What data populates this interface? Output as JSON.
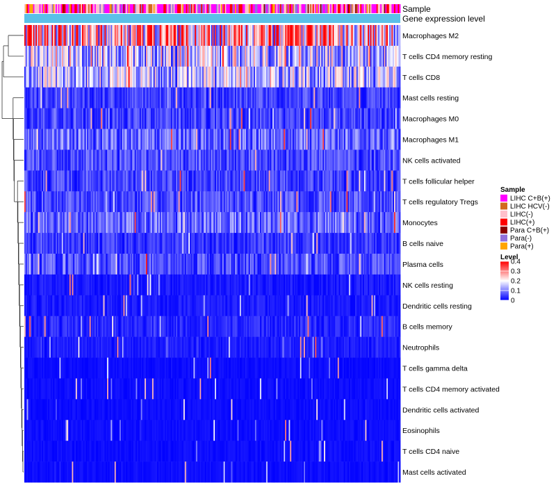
{
  "chart_data": {
    "type": "heatmap",
    "annotation_tracks": [
      "Sample",
      "Gene expression level"
    ],
    "rows": [
      "Macrophages M2",
      "T cells CD4 memory resting",
      "T cells CD8",
      "Mast cells resting",
      "Macrophages M0",
      "Macrophages M1",
      "NK cells activated",
      "T cells follicular helper",
      "T cells regulatory  Tregs",
      "Monocytes",
      "B cells naive",
      "Plasma cells",
      "NK cells resting",
      "Dendritic cells resting",
      "B cells memory",
      "Neutrophils",
      "T cells gamma delta",
      "T cells CD4 memory activated",
      "Dendritic cells activated",
      "Eosinophils",
      "T cells CD4 naive",
      "Mast cells activated"
    ],
    "row_mean_levels": [
      0.26,
      0.15,
      0.14,
      0.05,
      0.05,
      0.08,
      0.06,
      0.05,
      0.06,
      0.08,
      0.04,
      0.06,
      0.02,
      0.02,
      0.03,
      0.02,
      0.01,
      0.01,
      0.01,
      0.01,
      0.01,
      0.01
    ],
    "n_columns": 300,
    "legend": {
      "sample": {
        "title": "Sample",
        "items": [
          {
            "label": "LIHC C+B(+)",
            "color": "#FF00FF"
          },
          {
            "label": "LIHC HCV(-)",
            "color": "#D2691E"
          },
          {
            "label": "LIHC(-)",
            "color": "#FFC0CB"
          },
          {
            "label": "LIHC(+)",
            "color": "#FF0000"
          },
          {
            "label": "Para C+B(+)",
            "color": "#8B0000"
          },
          {
            "label": "Para(-)",
            "color": "#9370DB"
          },
          {
            "label": "Para(+)",
            "color": "#FFA500"
          }
        ]
      },
      "level": {
        "title": "Level",
        "ticks": [
          0.4,
          0.3,
          0.2,
          0.1,
          0
        ],
        "tick_labels": [
          "0.4",
          "0.3",
          "0.2",
          "0.1",
          "0"
        ],
        "range": [
          0,
          0.4
        ],
        "colors": [
          "#0000FF",
          "#FFFFFF",
          "#FF0000"
        ]
      }
    },
    "expression_track_color": "#5BC0E8"
  }
}
